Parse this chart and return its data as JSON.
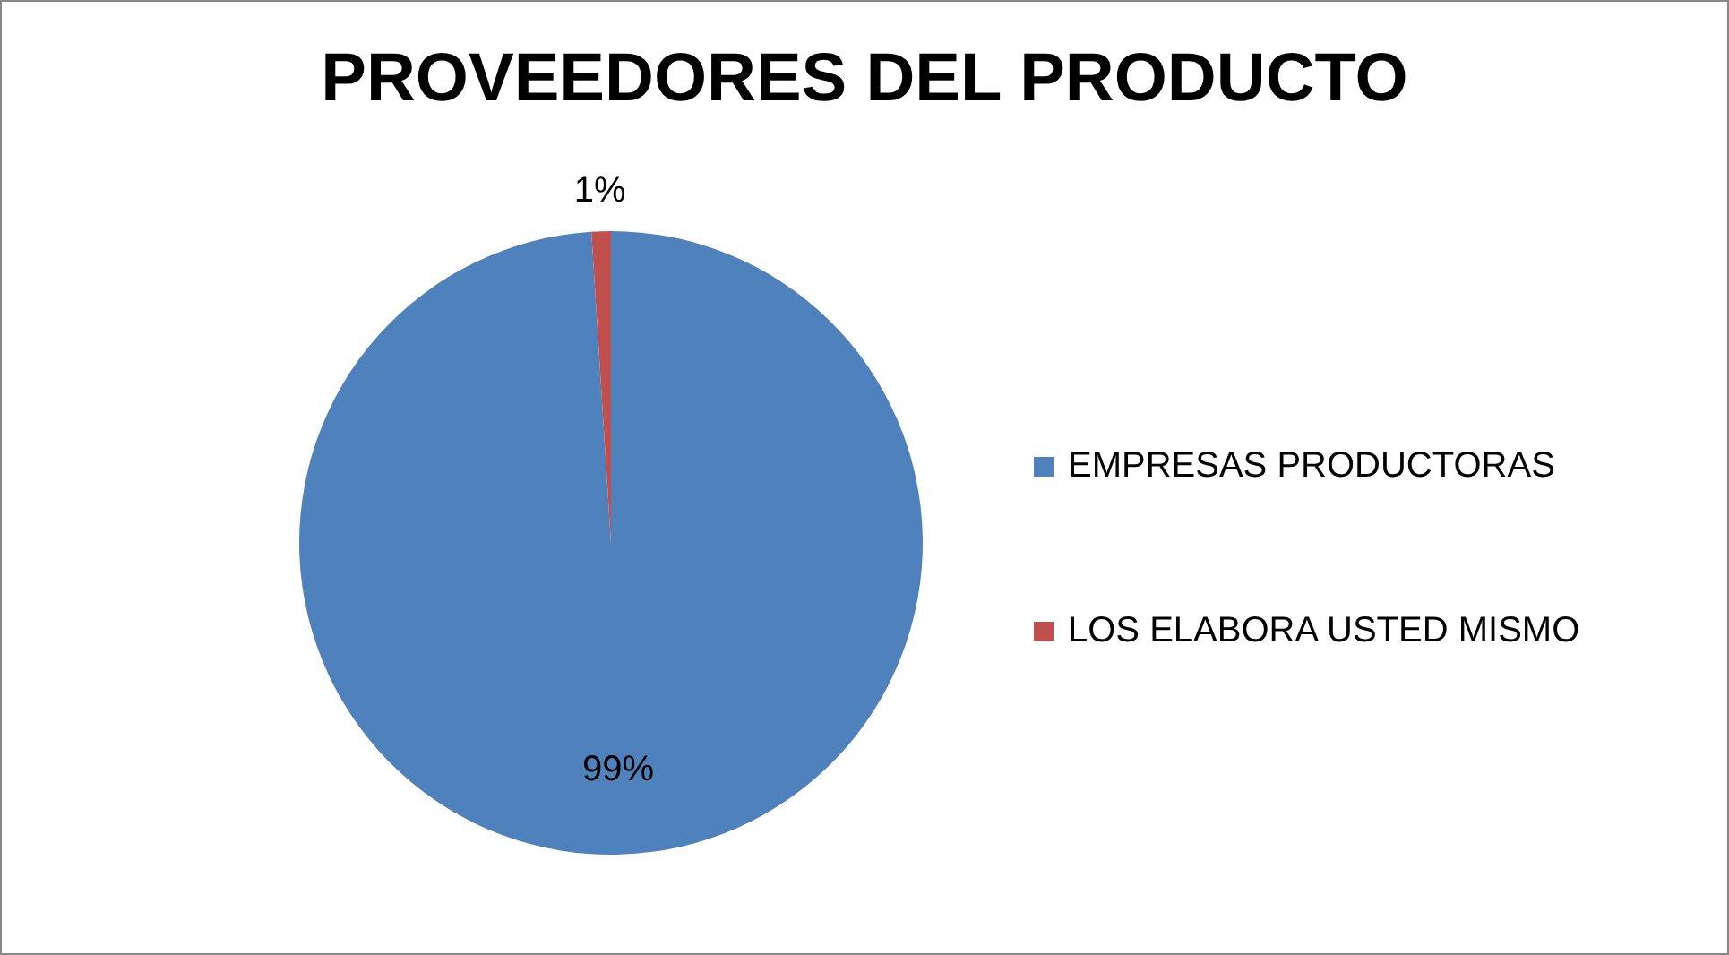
{
  "chart_data": {
    "type": "pie",
    "title": "PROVEEDORES DEL PRODUCTO",
    "categories": [
      "EMPRESAS PRODUCTORAS",
      "LOS ELABORA USTED MISMO"
    ],
    "values": [
      99,
      1
    ],
    "colors": [
      "#4f81bd",
      "#c0504d"
    ],
    "value_labels": [
      "99%",
      "1%"
    ],
    "legend": "right"
  }
}
